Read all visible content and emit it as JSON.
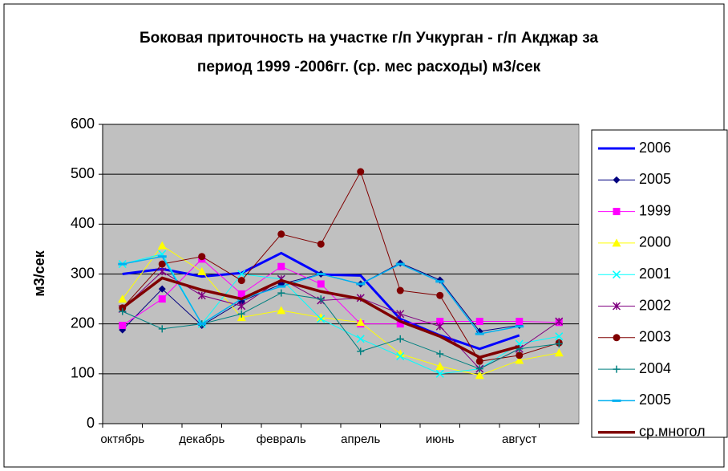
{
  "chart_data": {
    "type": "line",
    "title": [
      "Боковая приточность на участке г/п Учкурган - г/п Акджар за",
      "период 1999 -2006гг. (ср. мес расходы) м3/сек"
    ],
    "y_label": "м3/сек",
    "categories": [
      "октябрь",
      null,
      "декабрь",
      null,
      "февраль",
      null,
      "апрель",
      null,
      "июнь",
      null,
      "август",
      null
    ],
    "ylim": [
      0,
      600
    ],
    "yticks": [
      0,
      100,
      200,
      300,
      400,
      500,
      600
    ],
    "grid": true,
    "series": [
      {
        "name": "2006",
        "color": "#0000ff",
        "width": 3,
        "marker": "none",
        "values": [
          300,
          310,
          295,
          302,
          342,
          299,
          297,
          210,
          177,
          150,
          177,
          null
        ]
      },
      {
        "name": "2005",
        "color": "#000080",
        "width": 1,
        "marker": "diamond",
        "values": [
          188,
          270,
          197,
          245,
          280,
          300,
          280,
          322,
          288,
          185,
          197,
          null
        ]
      },
      {
        "name": "1999",
        "color": "#ff00ff",
        "width": 1,
        "marker": "square",
        "values": [
          197,
          250,
          330,
          260,
          315,
          280,
          200,
          200,
          205,
          205,
          205,
          203
        ]
      },
      {
        "name": "2000",
        "color": "#ffff00",
        "width": 1,
        "marker": "triangle",
        "values": [
          250,
          357,
          305,
          213,
          227,
          213,
          203,
          140,
          115,
          97,
          127,
          142
        ]
      },
      {
        "name": "2001",
        "color": "#00ffff",
        "width": 1,
        "marker": "x",
        "values": [
          320,
          340,
          200,
          300,
          290,
          210,
          170,
          135,
          100,
          110,
          160,
          175
        ]
      },
      {
        "name": "2002",
        "color": "#800080",
        "width": 1,
        "marker": "star",
        "values": [
          230,
          305,
          257,
          236,
          290,
          247,
          252,
          220,
          195,
          110,
          150,
          205
        ]
      },
      {
        "name": "2003",
        "color": "#800000",
        "width": 1,
        "marker": "circle",
        "values": [
          232,
          320,
          335,
          287,
          380,
          360,
          505,
          267,
          257,
          125,
          137,
          162
        ]
      },
      {
        "name": "2004",
        "color": "#008080",
        "width": 1,
        "marker": "plus",
        "values": [
          225,
          190,
          200,
          220,
          262,
          250,
          145,
          170,
          140,
          110,
          150,
          160
        ]
      },
      {
        "name": "2005",
        "color": "#00b0f0",
        "width": 1.5,
        "marker": "dash",
        "values": [
          320,
          335,
          200,
          250,
          275,
          300,
          280,
          320,
          285,
          180,
          195,
          null
        ]
      },
      {
        "name": "ср.многол",
        "color": "#800000",
        "width": 3.5,
        "marker": "none",
        "values": [
          232,
          292,
          268,
          250,
          287,
          265,
          250,
          205,
          175,
          133,
          155,
          null
        ]
      }
    ]
  }
}
